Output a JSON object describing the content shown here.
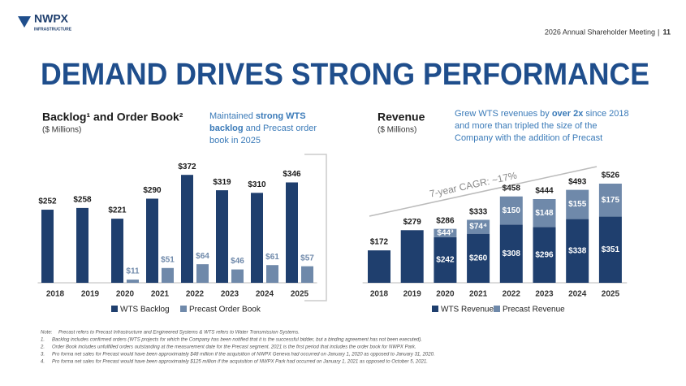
{
  "header": {
    "logo": "NWPX",
    "logo_sub": "INFRASTRUCTURE",
    "meeting": "2026 Annual Shareholder Meeting",
    "page": "11"
  },
  "title": "DEMAND DRIVES STRONG PERFORMANCE",
  "chart_data": [
    {
      "type": "bar",
      "title": "Backlog¹ and Order Book²",
      "subtitle": "($ Millions)",
      "annotation": [
        [
          {
            "text": "Maintained ",
            "bold": false
          },
          {
            "text": "strong WTS",
            "bold": true
          }
        ],
        [
          {
            "text": "backlog",
            "bold": true
          },
          {
            "text": " and Precast order",
            "bold": false
          }
        ],
        [
          {
            "text": "book in 2025",
            "bold": false
          }
        ]
      ],
      "categories": [
        "2018",
        "2019",
        "2020",
        "2021",
        "2022",
        "2023",
        "2024",
        "2025"
      ],
      "series": [
        {
          "name": "WTS Backlog",
          "color": "#1f3f6e",
          "values": [
            252,
            258,
            221,
            290,
            372,
            319,
            310,
            346
          ],
          "value_labels": [
            "$252",
            "$258",
            "$221",
            "$290",
            "$372",
            "$319",
            "$310",
            "$346"
          ]
        },
        {
          "name": "Precast Order Book",
          "color": "#6f89aa",
          "values": [
            null,
            null,
            11,
            51,
            64,
            46,
            61,
            57
          ],
          "value_labels": [
            null,
            null,
            "$11",
            "$51",
            "$64",
            "$46",
            "$61",
            "$57"
          ]
        }
      ]
    },
    {
      "type": "stacked_bar",
      "title": "Revenue",
      "subtitle": "($ Millions)",
      "annotation": [
        [
          {
            "text": "Grew WTS revenues by ",
            "bold": false
          },
          {
            "text": "over 2x",
            "bold": true
          },
          {
            "text": " since 2018",
            "bold": false
          }
        ],
        [
          {
            "text": "and more than tripled the size of the",
            "bold": false
          }
        ],
        [
          {
            "text": "Company with the addition of Precast",
            "bold": false
          }
        ]
      ],
      "trend_label": "7-year CAGR: ~17%",
      "categories": [
        "2018",
        "2019",
        "2020",
        "2021",
        "2022",
        "2023",
        "2024",
        "2025"
      ],
      "series": [
        {
          "name": "WTS Revenue",
          "color": "#1f3f6e",
          "values": [
            172,
            279,
            242,
            260,
            308,
            296,
            338,
            351
          ],
          "value_labels": [
            "$172",
            "$279",
            "$242",
            "$260",
            "$308",
            "$296",
            "$338",
            "$351"
          ]
        },
        {
          "name": "Precast Revenue",
          "color": "#6f89aa",
          "values": [
            null,
            null,
            44,
            74,
            150,
            148,
            155,
            175
          ],
          "value_labels": [
            null,
            null,
            "$44³",
            "$74⁴",
            "$150",
            "$148",
            "$155",
            "$175"
          ]
        }
      ],
      "totals": [
        null,
        null,
        286,
        333,
        458,
        444,
        493,
        526
      ],
      "total_labels": [
        null,
        null,
        "$286",
        "$333",
        "$458",
        "$444",
        "$493",
        "$526"
      ]
    }
  ],
  "notes": [
    {
      "num": "Note:",
      "text": "Precast refers to Precast Infrastructure and Engineered Systems & WTS refers to Water Transmission Systems."
    },
    {
      "num": "1.",
      "text": "Backlog includes confirmed orders (WTS projects for which the Company has been notified that it is the successful bidder, but a binding agreement has not been executed)."
    },
    {
      "num": "2.",
      "text": "Order Book includes unfulfilled orders outstanding at the measurement date for the Precast segment. 2021 is the first period that includes the order book for NWPX Park."
    },
    {
      "num": "3.",
      "text": "Pro forma net sales for Precast would have been approximately $48 million if the acquisition of NWPX Geneva had occurred on January 1, 2020 as opposed to January 31, 2020."
    },
    {
      "num": "4.",
      "text": "Pro forma net sales for Precast would have been approximately $125 million if the acquisition of NWPX Park had occurred on January 1, 2021 as opposed to October 5, 2021."
    }
  ]
}
